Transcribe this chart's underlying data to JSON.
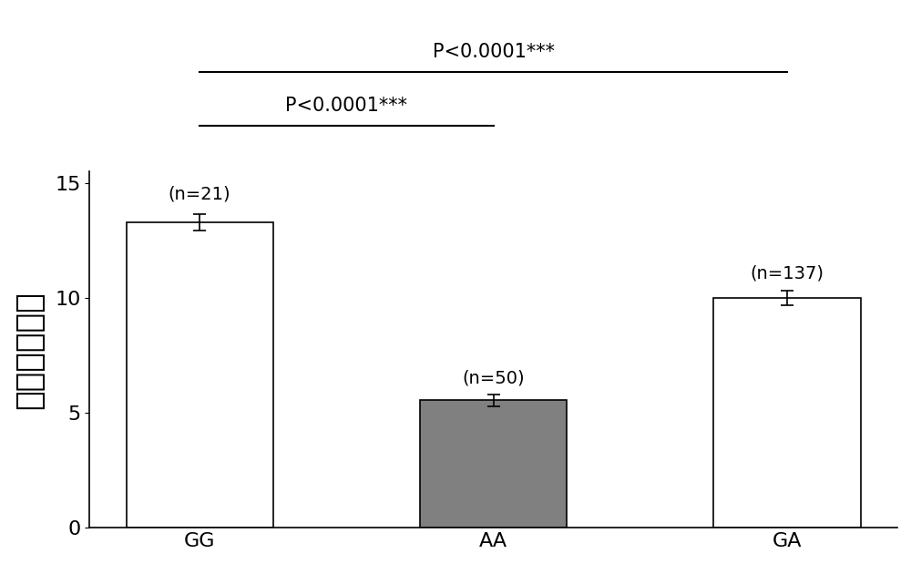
{
  "categories": [
    "GG",
    "AA",
    "GA"
  ],
  "values": [
    13.3,
    5.55,
    10.0
  ],
  "errors": [
    0.35,
    0.25,
    0.3
  ],
  "bar_colors": [
    "#ffffff",
    "#808080",
    "#ffffff"
  ],
  "bar_edgecolors": [
    "#000000",
    "#000000",
    "#000000"
  ],
  "sample_labels": [
    "(n=21)",
    "(n=50)",
    "(n=137)"
  ],
  "ylabel": "次生乳管列数",
  "ylim": [
    0,
    15.5
  ],
  "yticks": [
    0,
    5,
    10,
    15
  ],
  "bar_width": 0.5,
  "figsize": [
    10.0,
    6.19
  ],
  "dpi": 100,
  "background_color": "#ffffff",
  "fontsize_ticks": 16,
  "fontsize_ylabel": 26,
  "fontsize_labels": 14,
  "fontsize_sig": 15,
  "sig_bracket_1_label": "P<0.0001***",
  "sig_bracket_2_label": "P<0.0001***"
}
